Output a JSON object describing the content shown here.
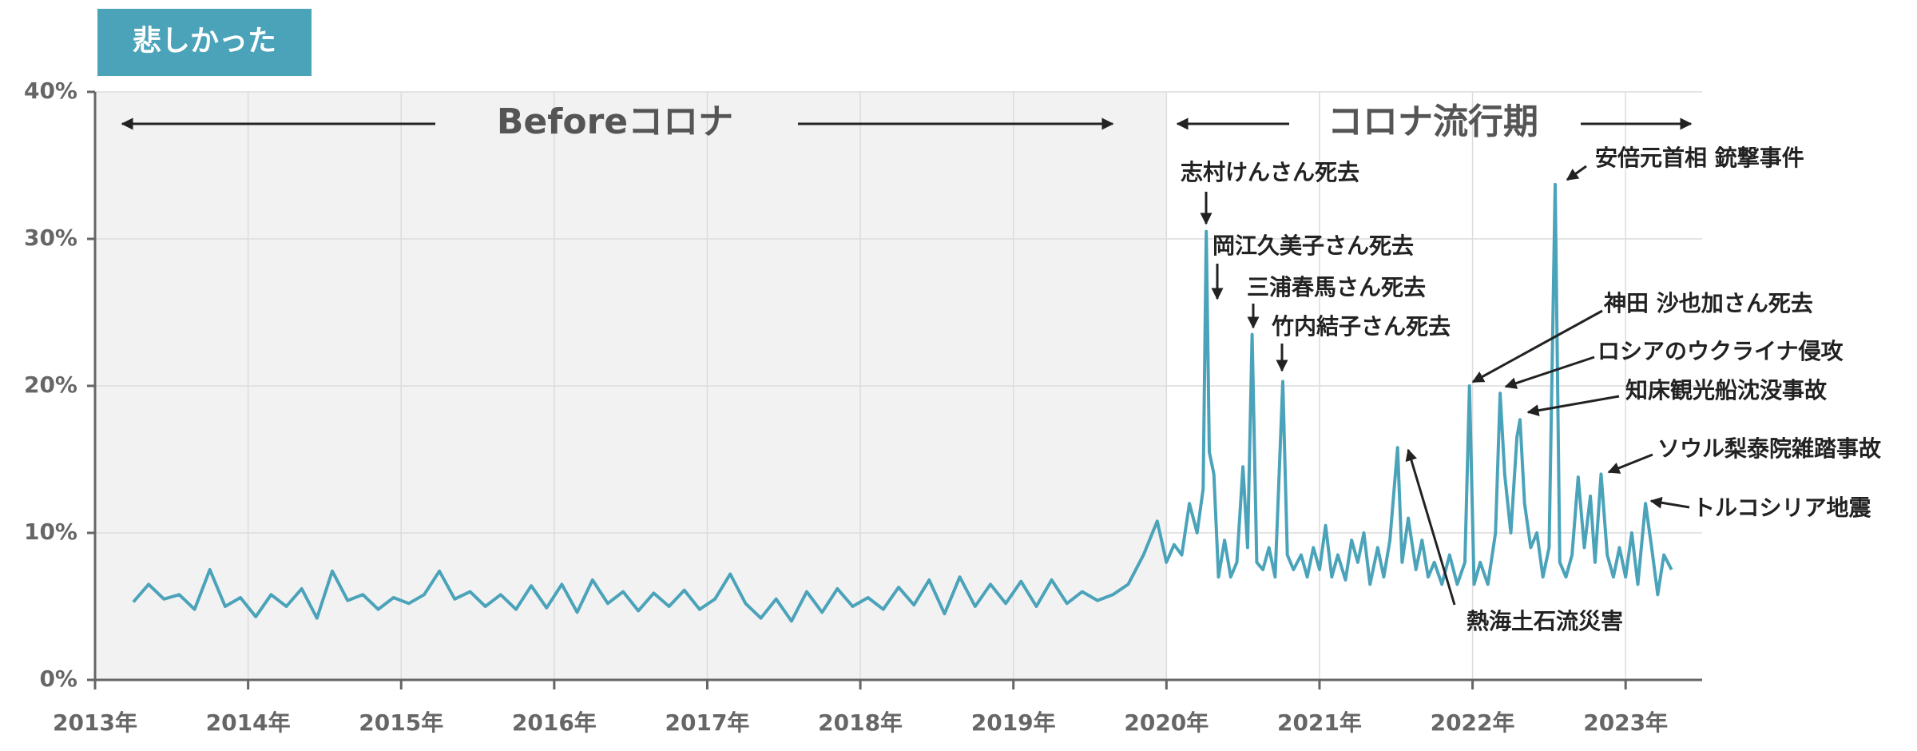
{
  "chart_data": {
    "type": "line",
    "title": "悲しかった",
    "period_labels": [
      "Beforeコロナ",
      "コロナ流行期"
    ],
    "shaded_region": {
      "x": [
        2013,
        2020
      ],
      "color": "#f2f2f2"
    },
    "color": "#4ba3ba",
    "grid": true,
    "xlim": [
      2013,
      2023.5
    ],
    "ylim": [
      0,
      40
    ],
    "xticks": [
      {
        "value": 2013,
        "label": "2013年"
      },
      {
        "value": 2014,
        "label": "2014年"
      },
      {
        "value": 2015,
        "label": "2015年"
      },
      {
        "value": 2016,
        "label": "2016年"
      },
      {
        "value": 2017,
        "label": "2017年"
      },
      {
        "value": 2018,
        "label": "2018年"
      },
      {
        "value": 2019,
        "label": "2019年"
      },
      {
        "value": 2020,
        "label": "2020年"
      },
      {
        "value": 2021,
        "label": "2021年"
      },
      {
        "value": 2022,
        "label": "2022年"
      },
      {
        "value": 2023,
        "label": "2023年"
      }
    ],
    "yticks": [
      {
        "value": 0,
        "label": "0%"
      },
      {
        "value": 10,
        "label": "10%"
      },
      {
        "value": 20,
        "label": "20%"
      },
      {
        "value": 30,
        "label": "30%"
      },
      {
        "value": 40,
        "label": "40%"
      }
    ],
    "x": [
      2013.25,
      2013.35,
      2013.45,
      2013.55,
      2013.65,
      2013.75,
      2013.85,
      2013.95,
      2014.05,
      2014.15,
      2014.25,
      2014.35,
      2014.45,
      2014.55,
      2014.65,
      2014.75,
      2014.85,
      2014.95,
      2015.05,
      2015.15,
      2015.25,
      2015.35,
      2015.45,
      2015.55,
      2015.65,
      2015.75,
      2015.85,
      2015.95,
      2016.05,
      2016.15,
      2016.25,
      2016.35,
      2016.45,
      2016.55,
      2016.65,
      2016.75,
      2016.85,
      2016.95,
      2017.05,
      2017.15,
      2017.25,
      2017.35,
      2017.45,
      2017.55,
      2017.65,
      2017.75,
      2017.85,
      2017.95,
      2018.05,
      2018.15,
      2018.25,
      2018.35,
      2018.45,
      2018.55,
      2018.65,
      2018.75,
      2018.85,
      2018.95,
      2019.05,
      2019.15,
      2019.25,
      2019.35,
      2019.45,
      2019.55,
      2019.65,
      2019.75,
      2019.85,
      2019.94,
      2020.0,
      2020.05,
      2020.1,
      2020.15,
      2020.2,
      2020.24,
      2020.26,
      2020.28,
      2020.31,
      2020.34,
      2020.38,
      2020.42,
      2020.46,
      2020.5,
      2020.53,
      2020.56,
      2020.59,
      2020.63,
      2020.67,
      2020.71,
      2020.76,
      2020.79,
      2020.83,
      2020.88,
      2020.92,
      2020.96,
      2021.0,
      2021.04,
      2021.08,
      2021.12,
      2021.17,
      2021.21,
      2021.25,
      2021.29,
      2021.33,
      2021.38,
      2021.42,
      2021.46,
      2021.51,
      2021.54,
      2021.58,
      2021.63,
      2021.67,
      2021.71,
      2021.75,
      2021.8,
      2021.85,
      2021.9,
      2021.95,
      2021.98,
      2022.01,
      2022.05,
      2022.1,
      2022.15,
      2022.18,
      2022.21,
      2022.25,
      2022.29,
      2022.31,
      2022.34,
      2022.38,
      2022.42,
      2022.46,
      2022.5,
      2022.54,
      2022.57,
      2022.61,
      2022.65,
      2022.69,
      2022.73,
      2022.77,
      2022.8,
      2022.84,
      2022.88,
      2022.92,
      2022.96,
      2023.0,
      2023.04,
      2023.08,
      2023.13,
      2023.17,
      2023.21,
      2023.25,
      2023.3
    ],
    "values": [
      5.3,
      6.5,
      5.5,
      5.8,
      4.8,
      7.5,
      5.0,
      5.6,
      4.3,
      5.8,
      5.0,
      6.2,
      4.2,
      7.4,
      5.4,
      5.8,
      4.8,
      5.6,
      5.2,
      5.8,
      7.4,
      5.5,
      6.0,
      5.0,
      5.8,
      4.8,
      6.4,
      4.9,
      6.5,
      4.6,
      6.8,
      5.2,
      6.0,
      4.7,
      5.9,
      5.0,
      6.1,
      4.8,
      5.5,
      7.2,
      5.2,
      4.2,
      5.5,
      4.0,
      6.0,
      4.6,
      6.2,
      5.0,
      5.6,
      4.8,
      6.3,
      5.1,
      6.8,
      4.5,
      7.0,
      5.0,
      6.5,
      5.2,
      6.7,
      5.0,
      6.8,
      5.2,
      6.0,
      5.4,
      5.8,
      6.5,
      8.5,
      10.8,
      8.0,
      9.2,
      8.5,
      12.0,
      10.0,
      13.0,
      30.5,
      15.5,
      14.0,
      7.0,
      9.5,
      7.0,
      8.0,
      14.5,
      9.0,
      23.5,
      8.0,
      7.5,
      9.0,
      7.0,
      20.3,
      8.5,
      7.5,
      8.5,
      7.0,
      9.0,
      7.5,
      10.5,
      7.0,
      8.5,
      6.8,
      9.5,
      8.0,
      10.0,
      6.5,
      9.0,
      7.0,
      9.5,
      15.8,
      8.0,
      11.0,
      7.5,
      9.5,
      7.0,
      8.0,
      6.5,
      8.5,
      6.5,
      8.0,
      20.0,
      6.5,
      8.0,
      6.5,
      10.0,
      19.5,
      14.0,
      10.0,
      16.5,
      17.7,
      12.0,
      9.0,
      10.0,
      7.0,
      9.0,
      33.7,
      8.0,
      7.0,
      8.5,
      13.8,
      9.0,
      12.5,
      8.0,
      14.0,
      8.5,
      7.0,
      9.0,
      7.0,
      10.0,
      6.5,
      12.0,
      9.0,
      5.8,
      8.5,
      7.5
    ],
    "annotations": [
      "志村けんさん死去",
      "岡江久美子さん死去",
      "三浦春馬さん死去",
      "竹内結子さん死去",
      "安倍元首相 銃撃事件",
      "神田 沙也加さん死去",
      "ロシアのウクライナ侵攻",
      "知床観光船沈没事故",
      "ソウル梨泰院雑踏事故",
      "トルコシリア地震",
      "熱海土石流災害"
    ]
  }
}
